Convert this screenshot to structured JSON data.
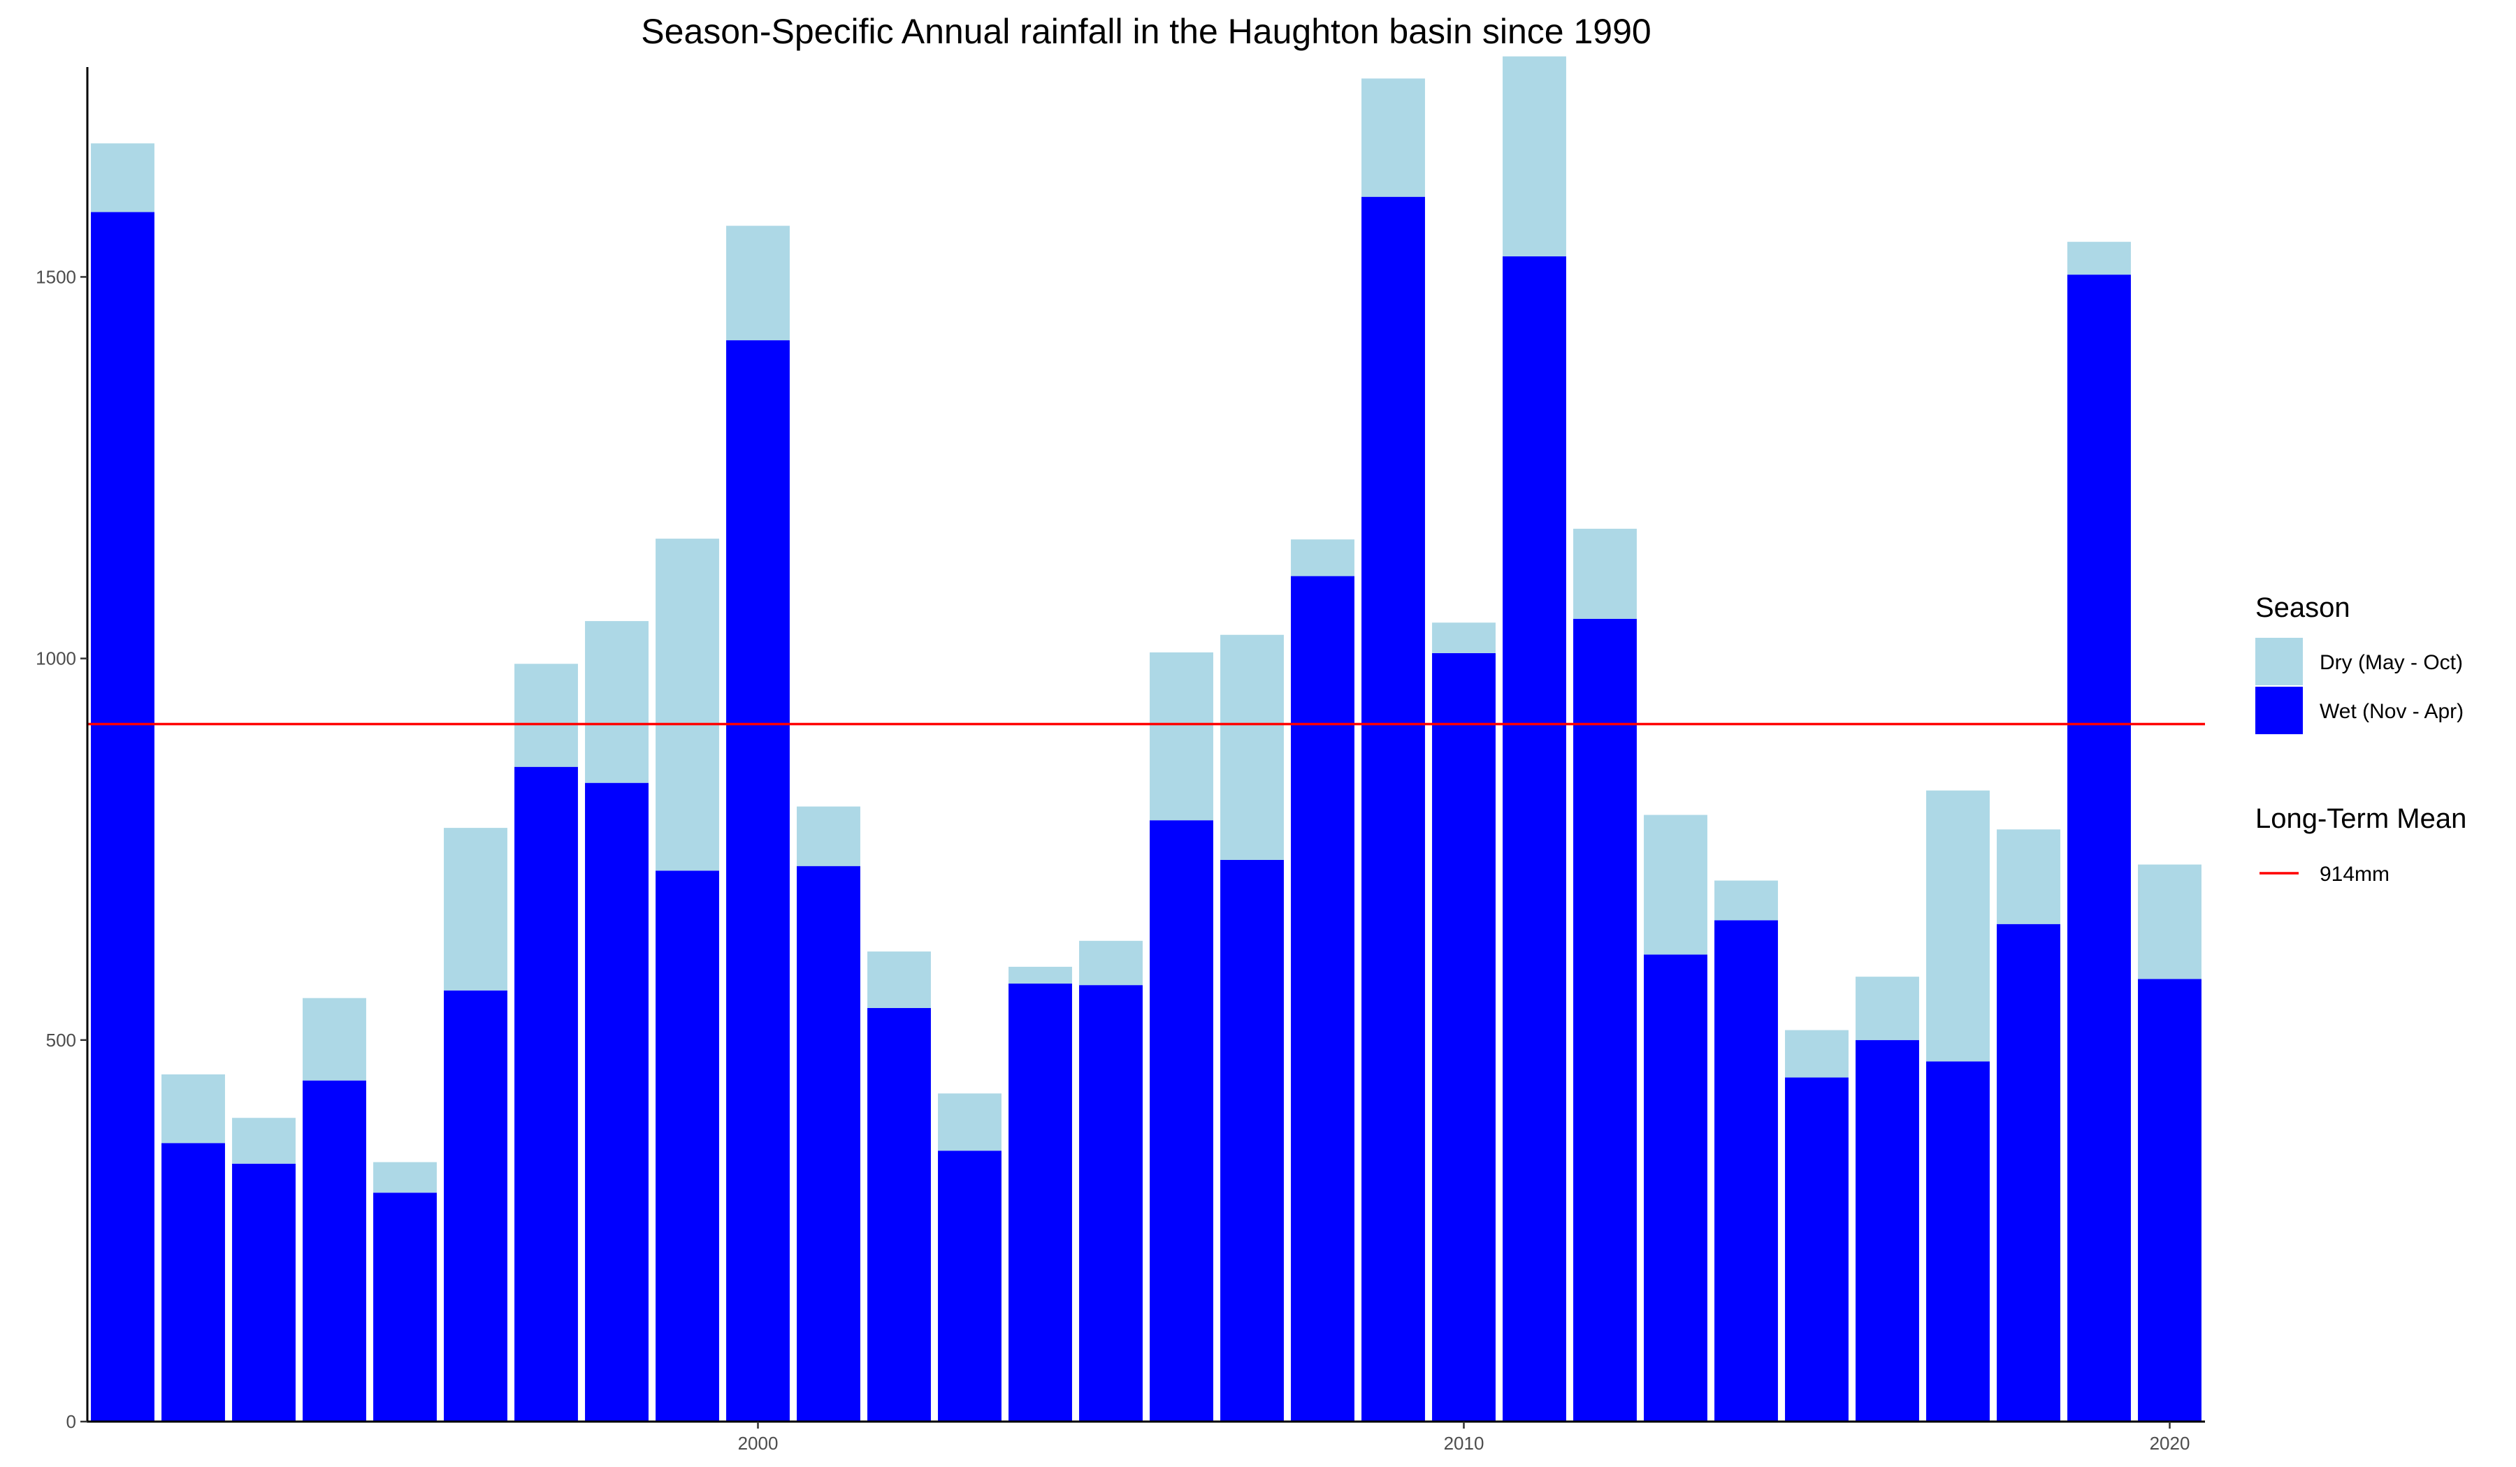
{
  "chart_data": {
    "type": "bar",
    "stacked": true,
    "title": "Season-Specific Annual rainfall in the Haughton basin since 1990",
    "xlabel": "",
    "ylabel": "",
    "x": [
      1991,
      1992,
      1993,
      1994,
      1995,
      1996,
      1997,
      1998,
      1999,
      2000,
      2001,
      2002,
      2003,
      2004,
      2005,
      2006,
      2007,
      2008,
      2009,
      2010,
      2011,
      2012,
      2013,
      2014,
      2015,
      2016,
      2017,
      2018,
      2019,
      2020
    ],
    "series": [
      {
        "name": "Wet (Nov - Apr)",
        "color": "#0000ff",
        "values": [
          1585,
          365,
          338,
          447,
          300,
          565,
          858,
          837,
          722,
          1417,
          728,
          542,
          355,
          574,
          572,
          788,
          736,
          1108,
          1605,
          1007,
          1527,
          1052,
          612,
          657,
          451,
          500,
          472,
          652,
          1503,
          580
        ]
      },
      {
        "name": "Dry (May - Oct)",
        "color": "#add8e6",
        "values": [
          90,
          90,
          60,
          108,
          40,
          213,
          135,
          212,
          435,
          150,
          78,
          74,
          75,
          22,
          58,
          220,
          295,
          48,
          155,
          40,
          262,
          118,
          183,
          52,
          62,
          83,
          355,
          124,
          43,
          150
        ]
      }
    ],
    "stack_order": [
      "Wet (Nov - Apr)",
      "Dry (May - Oct)"
    ],
    "ylim": [
      0,
      1775
    ],
    "xlim": [
      1990.5,
      2020.5
    ],
    "x_ticks": [
      2000,
      2010,
      2020
    ],
    "y_ticks": [
      0,
      500,
      1000,
      1500
    ],
    "mean_line": {
      "value": 914,
      "color": "#ff0000"
    },
    "legend": {
      "placement": "right",
      "season_title": "Season",
      "season_items": [
        {
          "label": "Dry (May - Oct)",
          "color": "#add8e6"
        },
        {
          "label": "Wet (Nov - Apr)",
          "color": "#0000ff"
        }
      ],
      "mean_title": "Long-Term Mean",
      "mean_label": "914mm"
    },
    "grid": false
  }
}
